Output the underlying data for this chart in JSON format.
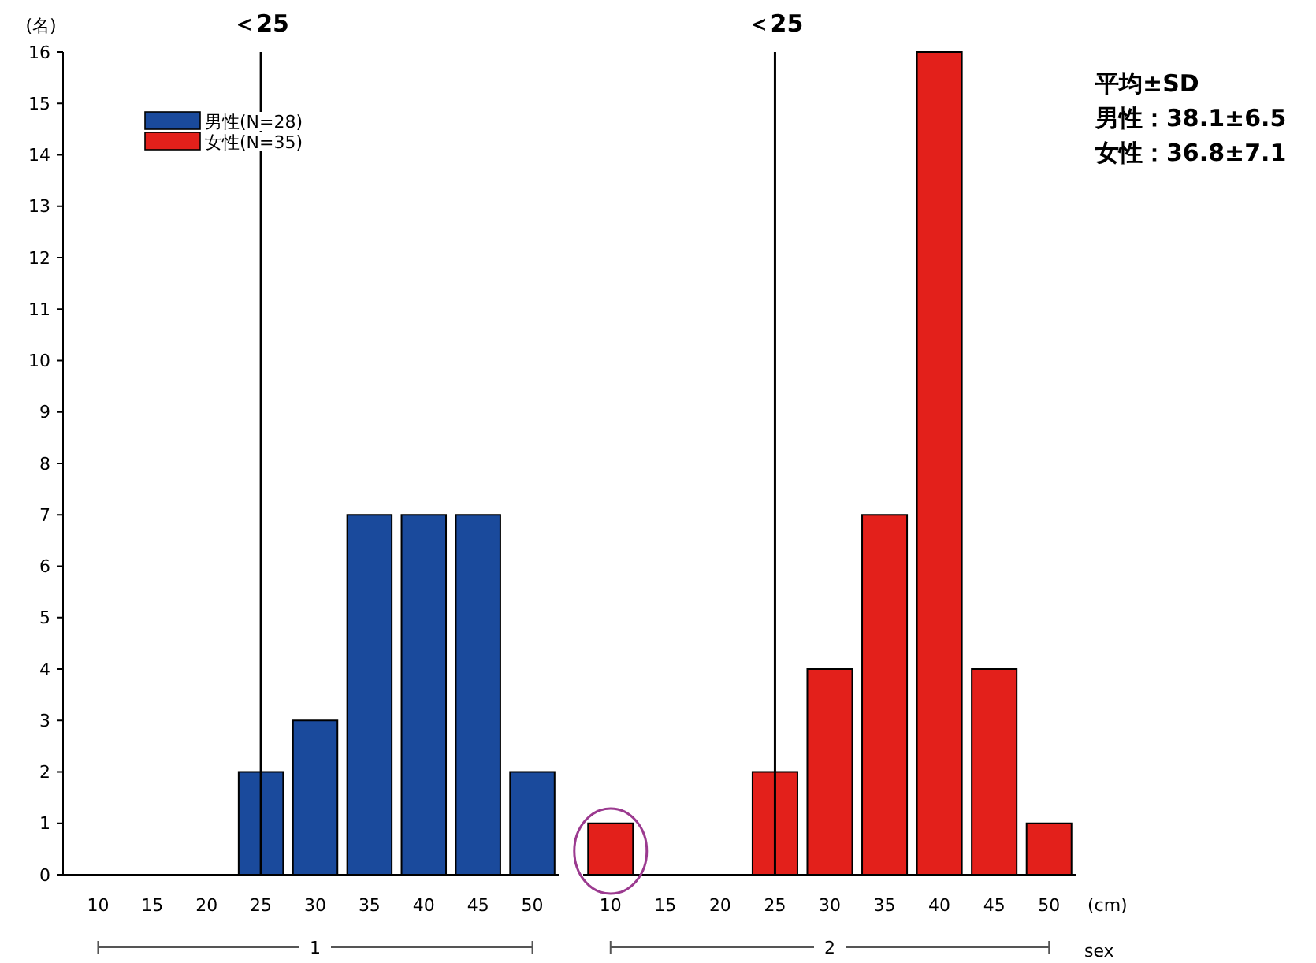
{
  "chart_data": [
    {
      "type": "bar",
      "ylabel": "(名)",
      "xlabel": "1",
      "categories": [
        "10",
        "15",
        "20",
        "25",
        "30",
        "35",
        "40",
        "45",
        "50"
      ],
      "series": [
        {
          "name": "男性(N=28)",
          "color": "#1a4a9c",
          "values": [
            0,
            0,
            0,
            2,
            3,
            7,
            7,
            7,
            2
          ]
        }
      ],
      "ylim": [
        0,
        16
      ],
      "yticks": [
        0,
        1,
        2,
        3,
        4,
        5,
        6,
        7,
        8,
        9,
        10,
        11,
        12,
        13,
        14,
        15,
        16
      ],
      "legend": "top left",
      "ref_lines": [
        {
          "axis": "x",
          "value": "25",
          "label": "＜25",
          "color": "#000000"
        }
      ]
    },
    {
      "type": "bar",
      "xlabel": "2",
      "categories": [
        "10",
        "15",
        "20",
        "25",
        "30",
        "35",
        "40",
        "45",
        "50"
      ],
      "series": [
        {
          "name": "女性(N=35)",
          "color": "#e3201b",
          "values": [
            1,
            0,
            0,
            2,
            4,
            7,
            16,
            4,
            1
          ]
        }
      ],
      "ylim": [
        0,
        16
      ],
      "tick_labels": "x",
      "legend": "top left",
      "ref_lines": [
        {
          "axis": "x",
          "value": "25",
          "label": "＜25",
          "color": "#000000"
        }
      ],
      "annotations": [
        "(cm)",
        "sex",
        "平均±SD",
        "男性：38.1±6.5",
        "女性：36.8±7.1"
      ]
    }
  ]
}
